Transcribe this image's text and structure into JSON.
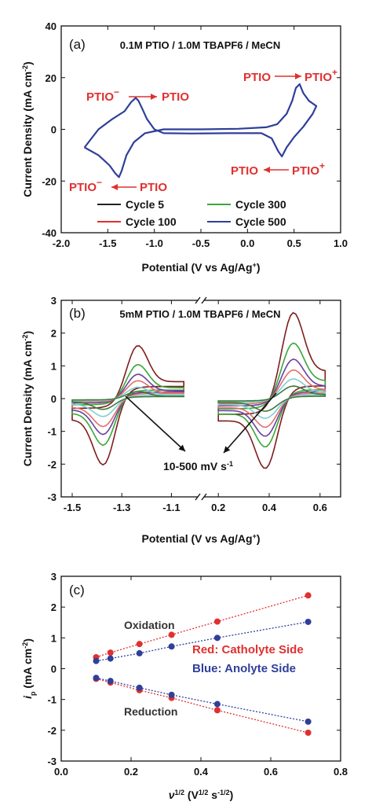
{
  "chart_data": [
    {
      "type": "line",
      "panel": "(a)",
      "title": "0.1M PTIO / 1.0M TBAPF6 / MeCN",
      "xlabel": "Potential (V vs Ag/Ag",
      "xlabel_sup": "+",
      "xlabel_end": ")",
      "ylabel": "Current Density (mA cm",
      "ylabel_sup": "-2",
      "ylabel_end": ")",
      "xlim": [
        -2.0,
        1.0
      ],
      "ylim": [
        -40,
        40
      ],
      "xticks": [
        -2.0,
        -1.5,
        -1.0,
        -0.5,
        0.0,
        0.5,
        1.0
      ],
      "xtick_labels": [
        "-2.0",
        "-1.5",
        "-1.0",
        "-0.5",
        "0.0",
        "0.5",
        "1.0"
      ],
      "yticks": [
        -40,
        -20,
        0,
        20,
        40
      ],
      "ytick_labels": [
        "-40",
        "-20",
        "0",
        "20",
        "40"
      ],
      "legend_position": "bottom-right",
      "series": [
        {
          "name": "Cycle 5",
          "color": "#222222"
        },
        {
          "name": "Cycle 100",
          "color": "#e03030"
        },
        {
          "name": "Cycle 300",
          "color": "#3aa63a"
        },
        {
          "name": "Cycle 500",
          "color": "#2f3f9a"
        }
      ],
      "cv_curve": [
        [
          -1.75,
          -7
        ],
        [
          -1.6,
          -10
        ],
        [
          -1.48,
          -14
        ],
        [
          -1.42,
          -17
        ],
        [
          -1.38,
          -18.5
        ],
        [
          -1.35,
          -16
        ],
        [
          -1.3,
          -10
        ],
        [
          -1.22,
          -5
        ],
        [
          -1.1,
          -1.5
        ],
        [
          -0.9,
          0
        ],
        [
          -0.5,
          0
        ],
        [
          -0.1,
          0.2
        ],
        [
          0.2,
          0.8
        ],
        [
          0.32,
          2
        ],
        [
          0.42,
          6
        ],
        [
          0.48,
          11
        ],
        [
          0.52,
          16
        ],
        [
          0.56,
          17.5
        ],
        [
          0.6,
          14
        ],
        [
          0.66,
          11
        ],
        [
          0.74,
          9
        ],
        [
          0.7,
          6
        ],
        [
          0.6,
          1
        ],
        [
          0.5,
          -3
        ],
        [
          0.42,
          -7
        ],
        [
          0.37,
          -10.5
        ],
        [
          0.33,
          -8.5
        ],
        [
          0.26,
          -3.5
        ],
        [
          0.15,
          -1.5
        ],
        [
          -0.2,
          -1.5
        ],
        [
          -0.6,
          -1.6
        ],
        [
          -0.9,
          -1.5
        ],
        [
          -1.0,
          0
        ],
        [
          -1.08,
          4
        ],
        [
          -1.13,
          8
        ],
        [
          -1.17,
          11
        ],
        [
          -1.2,
          12.2
        ],
        [
          -1.25,
          10.5
        ],
        [
          -1.32,
          7
        ],
        [
          -1.45,
          4
        ],
        [
          -1.6,
          0
        ],
        [
          -1.75,
          -7
        ]
      ],
      "annotations": {
        "top_left": {
          "from": "PTIO",
          "from_sup": "−",
          "to": "PTIO"
        },
        "top_right": {
          "from": "PTIO",
          "to": "PTIO",
          "to_sup": "+"
        },
        "bottom_right": {
          "from": "PTIO",
          "to": "PTIO",
          "to_sup": "+"
        },
        "bottom_left": {
          "from": "PTIO",
          "from_sup": "−",
          "to": "PTIO"
        }
      }
    },
    {
      "type": "line",
      "panel": "(b)",
      "title": "5mM PTIO / 1.0M TBAPF6 / MeCN",
      "xlabel": "Potential (V vs Ag/Ag",
      "xlabel_sup": "+",
      "xlabel_end": ")",
      "ylabel": "Current Density (mA cm",
      "ylabel_sup": "-2",
      "ylabel_end": ")",
      "ylim": [
        -3,
        3
      ],
      "yticks": [
        -3,
        -2,
        -1,
        0,
        1,
        2,
        3
      ],
      "ytick_labels": [
        "-3",
        "-2",
        "-1",
        "0",
        "1",
        "2",
        "3"
      ],
      "x_break": true,
      "x_left_range": [
        -1.5,
        -1.0
      ],
      "x_left_ticks": [
        -1.5,
        -1.3,
        -1.1
      ],
      "x_left_tick_labels": [
        "-1.5",
        "-1.3",
        "-1.1"
      ],
      "x_right_range": [
        0.15,
        0.65
      ],
      "x_right_ticks": [
        0.2,
        0.4,
        0.6
      ],
      "x_right_tick_labels": [
        "0.2",
        "0.4",
        "0.6"
      ],
      "annotation": {
        "text": "10-500 mV s",
        "sup": "-1"
      },
      "curve_colors": [
        "#7f1d1d",
        "#3aa63a",
        "#6b3fa0",
        "#e0706a",
        "#7ed0d0",
        "#3d7a3d"
      ],
      "ox_peaks": [
        1.48,
        0.95,
        0.68,
        0.5,
        0.32,
        0.2
      ],
      "red_peaks": [
        -1.85,
        -1.3,
        -1.0,
        -0.78,
        -0.5,
        -0.3
      ],
      "ox_peaks_right": [
        2.4,
        1.55,
        1.1,
        0.8,
        0.55,
        0.35
      ],
      "red_peaks_right": [
        -1.95,
        -1.35,
        -1.05,
        -0.8,
        -0.55,
        -0.35
      ]
    },
    {
      "type": "scatter",
      "panel": "(c)",
      "xlabel": "ν",
      "xlabel_sup1": "1/2",
      "xlabel_mid": " (V",
      "xlabel_sup2": "1/2",
      "xlabel_mid2": " s",
      "xlabel_sup3": "-1/2",
      "xlabel_end": ")",
      "ylabel": "i",
      "ylabel_sub": "p",
      "ylabel_rest": " (mA cm",
      "ylabel_sup": "-2",
      "ylabel_end": ")",
      "xlim": [
        0.0,
        0.8
      ],
      "ylim": [
        -3,
        3
      ],
      "xticks": [
        0.0,
        0.2,
        0.4,
        0.6,
        0.8
      ],
      "xtick_labels": [
        "0.0",
        "0.2",
        "0.4",
        "0.6",
        "0.8"
      ],
      "yticks": [
        -3,
        -2,
        -1,
        0,
        1,
        2,
        3
      ],
      "ytick_labels": [
        "-3",
        "-2",
        "-1",
        "0",
        "1",
        "2",
        "3"
      ],
      "labels": {
        "oxidation": "Oxidation",
        "reduction": "Reduction",
        "red_side": "Red: Catholyte Side",
        "blue_side": "Blue: Anolyte Side"
      },
      "x": [
        0.1,
        0.141,
        0.224,
        0.316,
        0.447,
        0.707
      ],
      "series": [
        {
          "color": "#e03030",
          "values": [
            0.37,
            0.52,
            0.8,
            1.1,
            1.53,
            2.38
          ]
        },
        {
          "color": "#2f3f9a",
          "values": [
            0.25,
            0.33,
            0.5,
            0.72,
            1.0,
            1.52
          ]
        },
        {
          "color": "#e03030",
          "values": [
            -0.33,
            -0.45,
            -0.7,
            -0.95,
            -1.35,
            -2.08
          ]
        },
        {
          "color": "#2f3f9a",
          "values": [
            -0.3,
            -0.4,
            -0.62,
            -0.85,
            -1.15,
            -1.72
          ]
        }
      ]
    }
  ]
}
